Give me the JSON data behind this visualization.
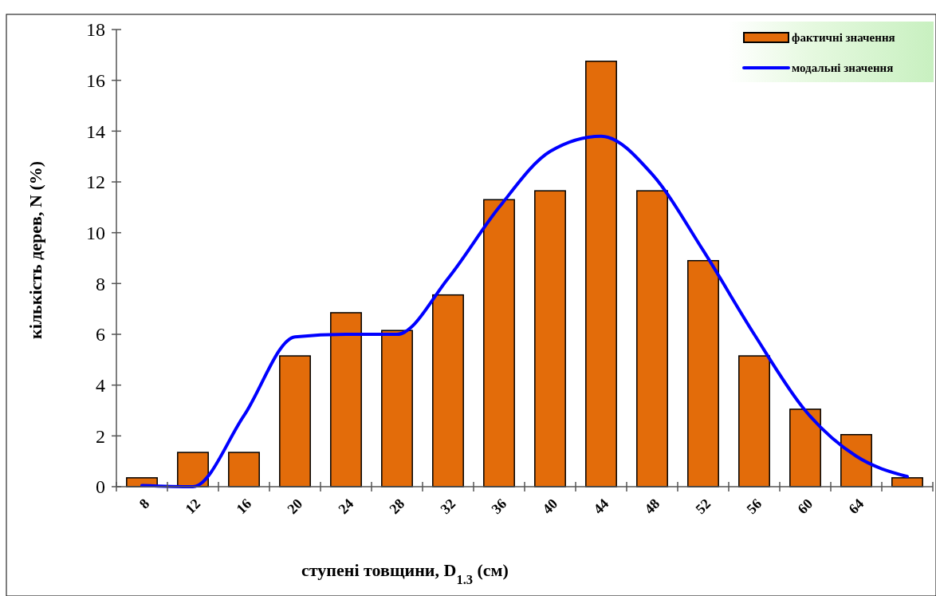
{
  "chart_data": {
    "type": "bar",
    "xlabel": "ступені товщини, D$_{1.3}$ (см)",
    "ylabel": "кількість дерев, N  (%)",
    "categories": [
      "8",
      "12",
      "16",
      "20",
      "24",
      "28",
      "32",
      "36",
      "40",
      "44",
      "48",
      "52",
      "56",
      "60",
      "64",
      null
    ],
    "series": [
      {
        "name": "фактичні значення",
        "color": "#e36c0a",
        "values": [
          0.35,
          1.35,
          1.35,
          5.15,
          6.85,
          6.15,
          7.55,
          11.3,
          11.65,
          16.75,
          11.65,
          8.9,
          5.15,
          3.05,
          2.05,
          0.35
        ]
      },
      {
        "name": "модальні значення",
        "type": "line",
        "color": "#0000ff",
        "values": [
          0.05,
          0.0,
          2.8,
          5.9,
          6.0,
          6.0,
          8.2,
          11.0,
          13.2,
          13.8,
          12.3,
          9.3,
          6.0,
          3.0,
          1.2,
          0.4
        ]
      }
    ],
    "ylim": [
      0,
      18
    ],
    "yticks": [
      0,
      2,
      4,
      6,
      8,
      10,
      12,
      14,
      16,
      18
    ],
    "legend": "top right",
    "grid": false,
    "marker": "none",
    "line_style": "solid"
  }
}
